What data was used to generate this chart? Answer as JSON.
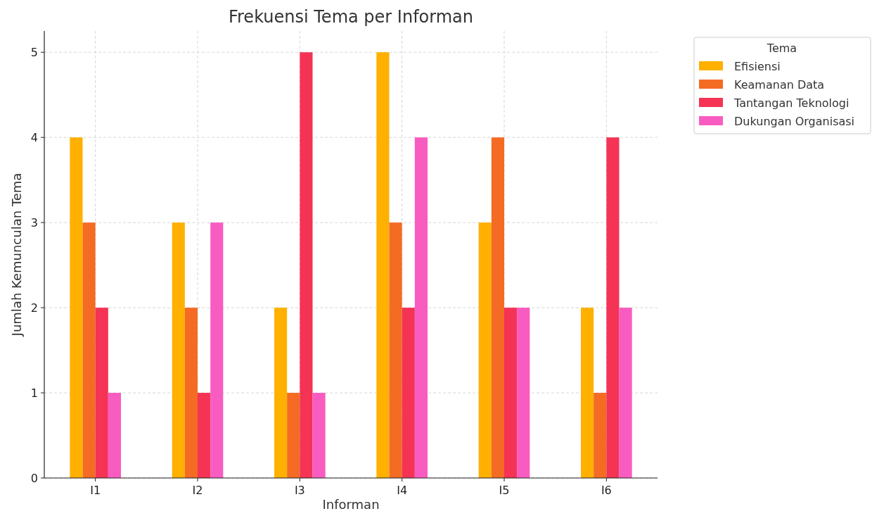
{
  "chart_data": {
    "type": "bar",
    "title": "Frekuensi Tema per Informan",
    "xlabel": "Informan",
    "ylabel": "Jumlah Kemunculan Tema",
    "legend_title": "Tema",
    "categories": [
      "I1",
      "I2",
      "I3",
      "I4",
      "I5",
      "I6"
    ],
    "series": [
      {
        "name": "Efisiensi",
        "color": "#ffb000",
        "values": [
          4,
          3,
          2,
          5,
          3,
          2
        ]
      },
      {
        "name": "Keamanan Data",
        "color": "#f46b24",
        "values": [
          3,
          2,
          1,
          3,
          4,
          1
        ]
      },
      {
        "name": "Tantangan Teknologi",
        "color": "#f43355",
        "values": [
          2,
          1,
          5,
          2,
          2,
          4
        ]
      },
      {
        "name": "Dukungan Organisasi",
        "color": "#f95cc0",
        "values": [
          1,
          3,
          1,
          4,
          2,
          2
        ]
      }
    ],
    "ylim": [
      0,
      5.25
    ],
    "yticks": [
      0,
      1,
      2,
      3,
      4,
      5
    ],
    "grid": true,
    "legend": "top right"
  }
}
